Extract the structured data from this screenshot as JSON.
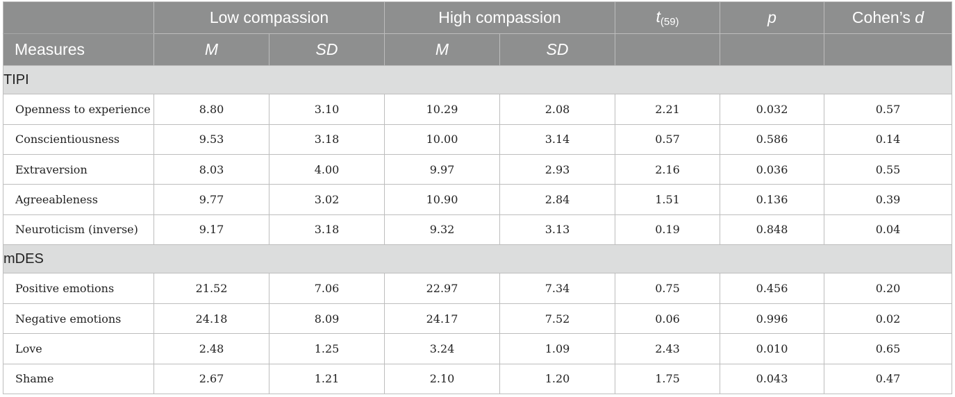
{
  "header": {
    "low_compassion": "Low compassion",
    "high_compassion": "High compassion",
    "t_main": "t",
    "t_sub": "(59)",
    "p": "p",
    "cohens_prefix": "Cohen’s ",
    "cohens_d": "d",
    "measures": "Measures",
    "m": "M",
    "sd": "SD"
  },
  "sections": [
    {
      "title": "TIPI",
      "rows": [
        {
          "label": "Openness to experience",
          "values": [
            "8.80",
            "3.10",
            "10.29",
            "2.08",
            "2.21",
            "0.032",
            "0.57"
          ]
        },
        {
          "label": "Conscientiousness",
          "values": [
            "9.53",
            "3.18",
            "10.00",
            "3.14",
            "0.57",
            "0.586",
            "0.14"
          ]
        },
        {
          "label": "Extraversion",
          "values": [
            "8.03",
            "4.00",
            "9.97",
            "2.93",
            "2.16",
            "0.036",
            "0.55"
          ]
        },
        {
          "label": "Agreeableness",
          "values": [
            "9.77",
            "3.02",
            "10.90",
            "2.84",
            "1.51",
            "0.136",
            "0.39"
          ]
        },
        {
          "label": "Neuroticism (inverse)",
          "values": [
            "9.17",
            "3.18",
            "9.32",
            "3.13",
            "0.19",
            "0.848",
            "0.04"
          ]
        }
      ]
    },
    {
      "title": "mDES",
      "rows": [
        {
          "label": "Positive emotions",
          "values": [
            "21.52",
            "7.06",
            "22.97",
            "7.34",
            "0.75",
            "0.456",
            "0.20"
          ]
        },
        {
          "label": "Negative emotions",
          "values": [
            "24.18",
            "8.09",
            "24.17",
            "7.52",
            "0.06",
            "0.996",
            "0.02"
          ]
        },
        {
          "label": "Love",
          "values": [
            "2.48",
            "1.25",
            "3.24",
            "1.09",
            "2.43",
            "0.010",
            "0.65"
          ]
        },
        {
          "label": "Shame",
          "values": [
            "2.67",
            "1.21",
            "2.10",
            "1.20",
            "1.75",
            "0.043",
            "0.47"
          ]
        }
      ]
    }
  ]
}
